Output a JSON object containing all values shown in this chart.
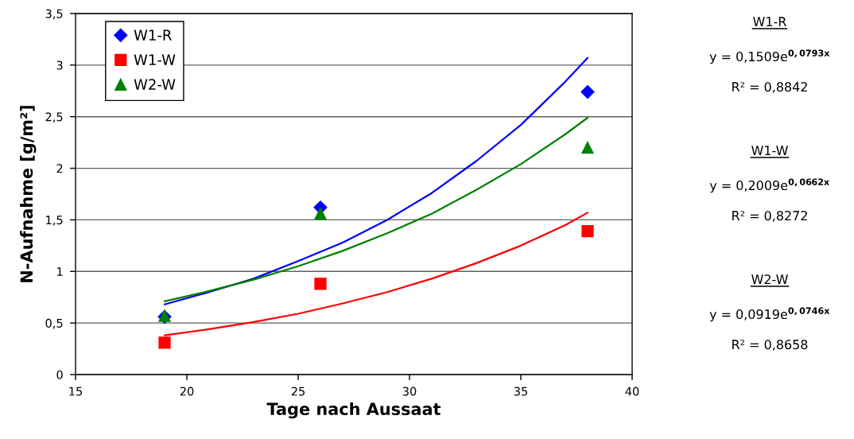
{
  "chart_data": {
    "type": "scatter",
    "xlabel": "Tage nach Aussaat",
    "ylabel": "N-Aufnahme [g/m²]",
    "xlim": [
      15,
      40
    ],
    "xticks": [
      15,
      20,
      25,
      30,
      35,
      40
    ],
    "ylim": [
      0,
      3.5
    ],
    "yticks": [
      0,
      {
        "value": 0.5,
        "label": "0,5"
      },
      1,
      {
        "value": 1.5,
        "label": "1,5"
      },
      2,
      {
        "value": 2.5,
        "label": "2,5"
      },
      3,
      {
        "value": 3.5,
        "label": "3,5"
      }
    ],
    "grid": "y",
    "legend": "top left",
    "series": [
      {
        "name": "W1-R",
        "color": "#0000ff",
        "marker": "diamond",
        "x": [
          19,
          26,
          38
        ],
        "values": [
          0.56,
          1.62,
          2.74
        ]
      },
      {
        "name": "W1-W",
        "color": "#ff0000",
        "marker": "square",
        "x": [
          19,
          26,
          38
        ],
        "values": [
          0.31,
          0.88,
          1.39
        ]
      },
      {
        "name": "W2-W",
        "color": "#008000",
        "marker": "triangle",
        "x": [
          19,
          26,
          38
        ],
        "values": [
          0.57,
          1.56,
          2.2
        ]
      },
      {
        "type": "line",
        "color": "#0000ff",
        "x": [
          19,
          21,
          23,
          25,
          27,
          29,
          31,
          33,
          35,
          37,
          38
        ],
        "values": [
          0.68,
          0.8,
          0.93,
          1.1,
          1.28,
          1.5,
          1.76,
          2.07,
          2.42,
          2.84,
          3.07
        ]
      },
      {
        "type": "line",
        "color": "#ff0000",
        "x": [
          19,
          21,
          23,
          25,
          27,
          29,
          31,
          33,
          35,
          37,
          38
        ],
        "values": [
          0.38,
          0.44,
          0.51,
          0.59,
          0.69,
          0.8,
          0.93,
          1.08,
          1.25,
          1.45,
          1.57
        ]
      },
      {
        "type": "line",
        "color": "#008000",
        "x": [
          19,
          21,
          23,
          25,
          27,
          29,
          31,
          33,
          35,
          37,
          38
        ],
        "values": [
          0.71,
          0.81,
          0.92,
          1.05,
          1.2,
          1.37,
          1.56,
          1.79,
          2.04,
          2.33,
          2.49
        ]
      }
    ],
    "annotations": [
      "W1-R",
      "y = 0,1509e$^{0,0793x}$",
      "R² = 0,8842",
      "W1-W",
      "y = 0,2009e$^{0,0662x}$",
      "R² = 0,8272",
      "W2-W",
      "y = 0,0919e$^{0,0746x}$",
      "R² = 0,8658"
    ]
  }
}
